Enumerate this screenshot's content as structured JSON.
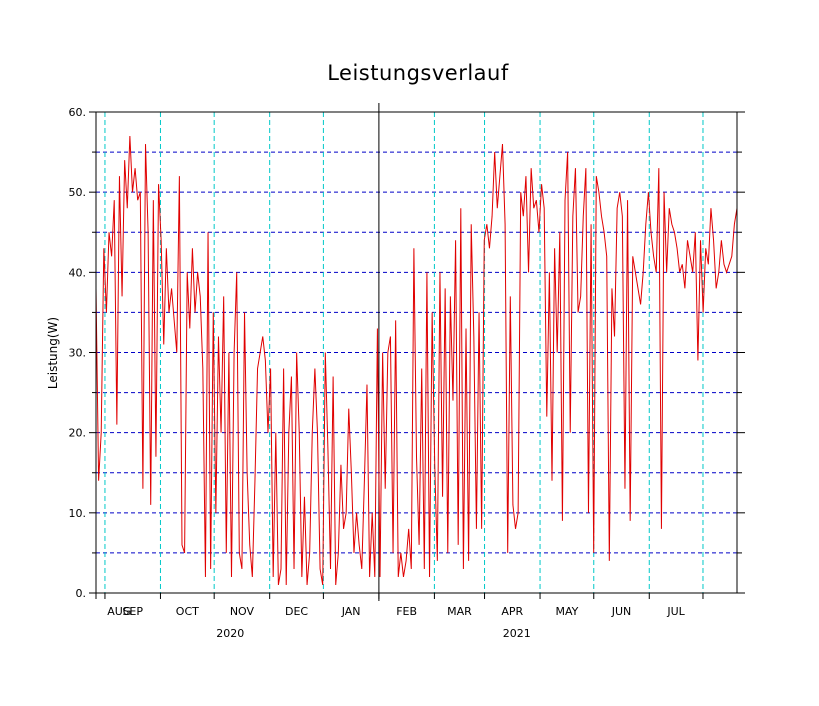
{
  "chart_data": {
    "type": "line",
    "title": "Leistungsverlauf",
    "xlabel": "",
    "ylabel": "Leistung(W)",
    "ylim": [
      0,
      60
    ],
    "yticks": [
      "0.",
      "10.",
      "20.",
      "30.",
      "40.",
      "50.",
      "60."
    ],
    "grid": "dashed horizontal every 5 W; vertical lines at month boundaries",
    "months": [
      "AUG",
      "SEP",
      "OCT",
      "NOV",
      "DEC",
      "JAN",
      "FEB",
      "MAR",
      "APR",
      "MAY",
      "JUN",
      "JUL"
    ],
    "years": [
      "2020",
      "2021"
    ],
    "series": [
      {
        "name": "Leistung",
        "color": "#e00000",
        "values": [
          38,
          14,
          20,
          43,
          35,
          45,
          42,
          49,
          21,
          52,
          37,
          54,
          48,
          57,
          50,
          53,
          49,
          50,
          13,
          56,
          45,
          11,
          49,
          17,
          51,
          44,
          31,
          43,
          35,
          38,
          34,
          30,
          52,
          6,
          5,
          40,
          33,
          43,
          35,
          40,
          37,
          28,
          2,
          45,
          3,
          35,
          10,
          32,
          20,
          37,
          5,
          30,
          2,
          30,
          40,
          5,
          3,
          35,
          15,
          6,
          2,
          14,
          28,
          30,
          32,
          29,
          20,
          28,
          2,
          20,
          1,
          3,
          28,
          1,
          20,
          27,
          3,
          30,
          20,
          2,
          12,
          1,
          5,
          20,
          28,
          20,
          3,
          1,
          30,
          18,
          3,
          27,
          1,
          5,
          16,
          8,
          10,
          23,
          15,
          5,
          10,
          6,
          3,
          14,
          26,
          2,
          10,
          2,
          33,
          2,
          30,
          13,
          30,
          32,
          5,
          34,
          2,
          5,
          2,
          4,
          8,
          3,
          43,
          17,
          6,
          28,
          3,
          40,
          2,
          35,
          16,
          4,
          40,
          12,
          38,
          5,
          37,
          24,
          44,
          6,
          48,
          3,
          33,
          4,
          46,
          32,
          8,
          35,
          8,
          44,
          46,
          43,
          47,
          55,
          48,
          52,
          56,
          46,
          5,
          37,
          11,
          8,
          10,
          50,
          47,
          52,
          40,
          53,
          48,
          49,
          45,
          51,
          48,
          22,
          40,
          14,
          43,
          30,
          45,
          9,
          49,
          55,
          20,
          47,
          53,
          35,
          37,
          47,
          53,
          10,
          46,
          5,
          52,
          50,
          47,
          45,
          42,
          4,
          38,
          32,
          48,
          50,
          47,
          13,
          49,
          9,
          42,
          40,
          38,
          36,
          40,
          46,
          50,
          45,
          42,
          40,
          53,
          8,
          50,
          40,
          48,
          46,
          45,
          43,
          40,
          41,
          38,
          44,
          42,
          40,
          45,
          29,
          44,
          35,
          43,
          41,
          48,
          44,
          38,
          40,
          44,
          41,
          40,
          41,
          42,
          46,
          48
        ]
      }
    ]
  }
}
